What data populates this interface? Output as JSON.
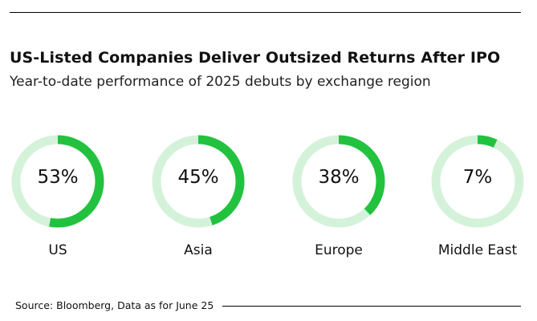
{
  "header": {
    "title": "US-Listed Companies Deliver Outsized Returns After IPO",
    "subtitle": "Year-to-date performance of 2025 debuts by exchange region"
  },
  "chart_data": {
    "type": "donut",
    "title": "US-Listed Companies Deliver Outsized Returns After IPO",
    "subtitle": "Year-to-date performance of 2025 debuts by exchange region",
    "categories": [
      "US",
      "Asia",
      "Europe",
      "Middle East"
    ],
    "values": [
      53,
      45,
      38,
      7
    ],
    "value_labels": [
      "53%",
      "45%",
      "38%",
      "7%"
    ],
    "max": 100,
    "colors": {
      "fill": "#22c23f",
      "track": "#d4f2d9"
    }
  },
  "footer": {
    "source": "Source: Bloomberg, Data as for June 25"
  }
}
